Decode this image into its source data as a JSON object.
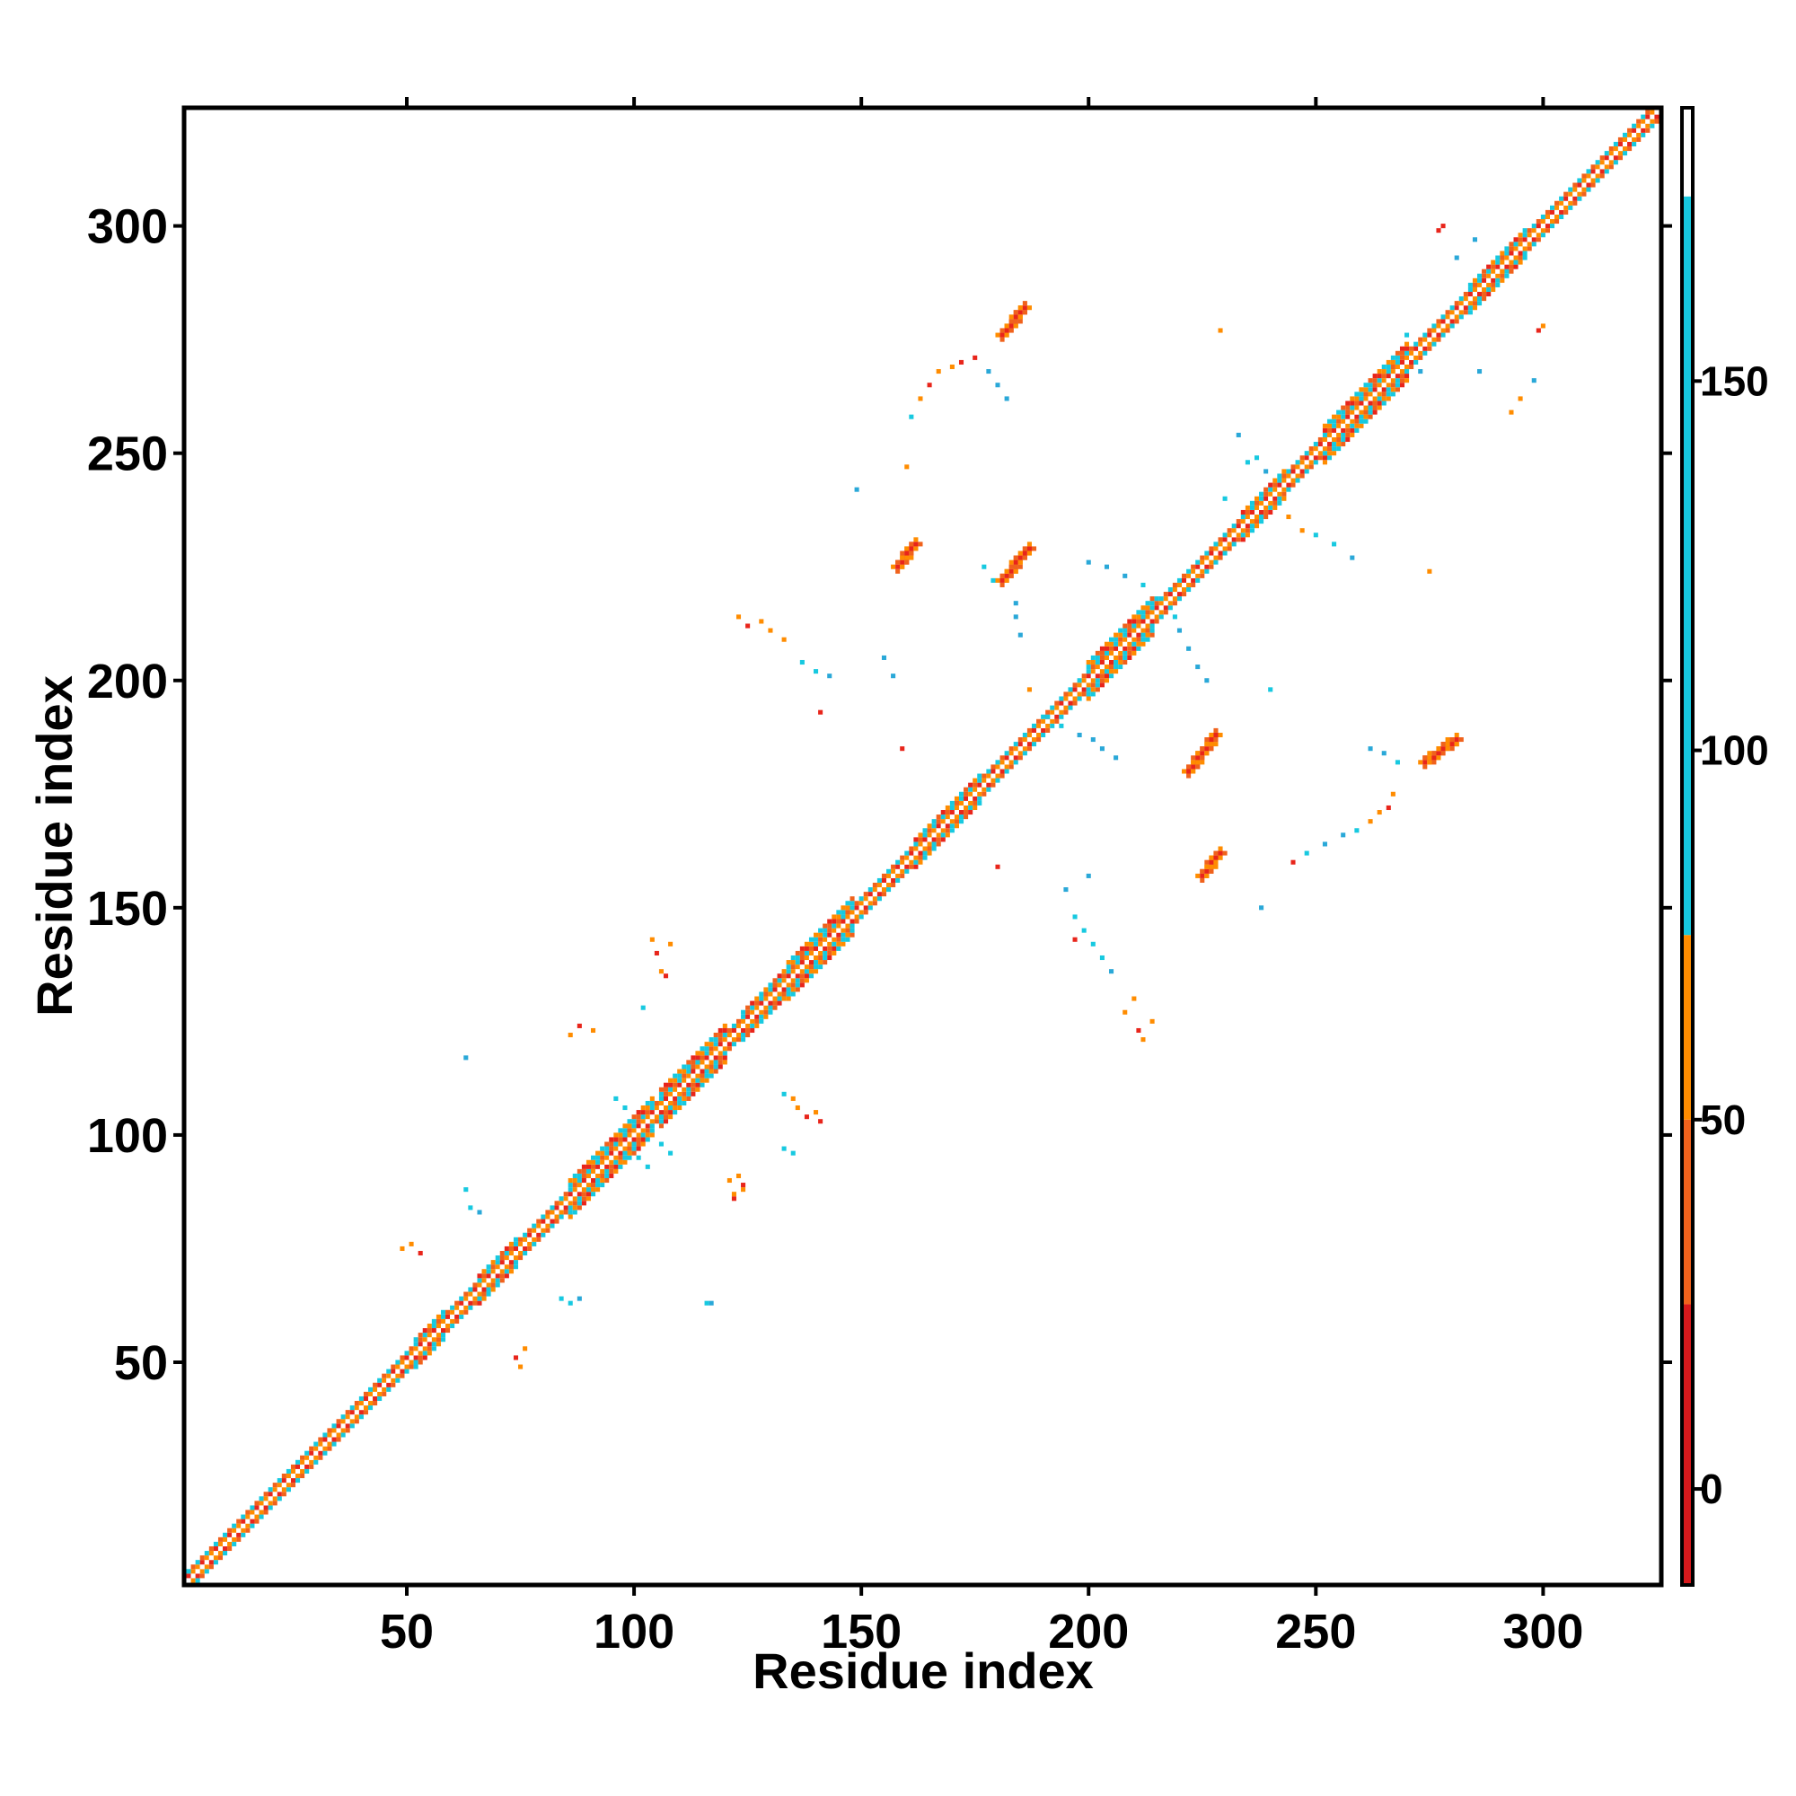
{
  "chart_data": {
    "type": "heatmap",
    "title": "",
    "xlabel": "Residue index",
    "ylabel": "Residue index",
    "xlim": [
      1,
      326
    ],
    "ylim": [
      1,
      326
    ],
    "xticks": [
      50,
      100,
      150,
      200,
      250,
      300
    ],
    "yticks": [
      50,
      100,
      150,
      200,
      250,
      300
    ],
    "grid": false,
    "colorbar": {
      "range": [
        -13,
        187
      ],
      "ticks": [
        0,
        50,
        100,
        150
      ],
      "segments": [
        {
          "from": -13,
          "to": 25,
          "color": "#d7191c"
        },
        {
          "from": 25,
          "to": 50,
          "color": "#f0621c"
        },
        {
          "from": 50,
          "to": 75,
          "color": "#ff8c00"
        },
        {
          "from": 75,
          "to": 175,
          "color": "#17c9e0"
        },
        {
          "from": 175,
          "to": 187,
          "color": "#ffffff"
        }
      ]
    },
    "colors": {
      "red": "#e8251b",
      "orange_red": "#f0621c",
      "orange": "#ff8c00",
      "cyan": "#17c9e0",
      "blue": "#2aa8d8"
    },
    "diagonal": {
      "start": 1,
      "end": 326
    },
    "diagonal_bands": [
      {
        "from": 52,
        "to": 58,
        "width": 3
      },
      {
        "from": 66,
        "to": 74,
        "width": 3
      },
      {
        "from": 86,
        "to": 104,
        "width": 4
      },
      {
        "from": 106,
        "to": 120,
        "width": 4
      },
      {
        "from": 124,
        "to": 133,
        "width": 3
      },
      {
        "from": 134,
        "to": 148,
        "width": 4
      },
      {
        "from": 162,
        "to": 176,
        "width": 3
      },
      {
        "from": 200,
        "to": 214,
        "width": 4
      },
      {
        "from": 234,
        "to": 243,
        "width": 3
      },
      {
        "from": 252,
        "to": 270,
        "width": 4
      },
      {
        "from": 284,
        "to": 296,
        "width": 3
      }
    ],
    "strand_contacts": [
      {
        "x": [
          158,
          162
        ],
        "y": [
          225,
          230
        ],
        "color": "red"
      },
      {
        "x": [
          181,
          187
        ],
        "y": [
          222,
          229
        ],
        "color": "red"
      },
      {
        "x": [
          181,
          186
        ],
        "y": [
          276,
          282
        ],
        "color": "red"
      },
      {
        "x": [
          222,
          228
        ],
        "y": [
          180,
          188
        ],
        "color": "red"
      },
      {
        "x": [
          225,
          229
        ],
        "y": [
          157,
          162
        ],
        "color": "red"
      },
      {
        "x": [
          274,
          281
        ],
        "y": [
          182,
          187
        ],
        "color": "red"
      }
    ],
    "scatter_contacts": [
      {
        "x": 49,
        "y": 75,
        "color": "orange"
      },
      {
        "x": 51,
        "y": 76,
        "color": "orange"
      },
      {
        "x": 53,
        "y": 74,
        "color": "red"
      },
      {
        "x": 74,
        "y": 51,
        "color": "red"
      },
      {
        "x": 76,
        "y": 53,
        "color": "orange"
      },
      {
        "x": 75,
        "y": 49,
        "color": "orange"
      },
      {
        "x": 63,
        "y": 88,
        "color": "cyan"
      },
      {
        "x": 64,
        "y": 84,
        "color": "cyan"
      },
      {
        "x": 66,
        "y": 83,
        "color": "blue"
      },
      {
        "x": 84,
        "y": 64,
        "color": "cyan"
      },
      {
        "x": 86,
        "y": 63,
        "color": "cyan"
      },
      {
        "x": 88,
        "y": 64,
        "color": "blue"
      },
      {
        "x": 63,
        "y": 117,
        "color": "blue"
      },
      {
        "x": 117,
        "y": 63,
        "color": "blue"
      },
      {
        "x": 86,
        "y": 122,
        "color": "orange"
      },
      {
        "x": 88,
        "y": 124,
        "color": "red"
      },
      {
        "x": 91,
        "y": 123,
        "color": "orange"
      },
      {
        "x": 122,
        "y": 86,
        "color": "red"
      },
      {
        "x": 124,
        "y": 88,
        "color": "orange"
      },
      {
        "x": 123,
        "y": 91,
        "color": "orange"
      },
      {
        "x": 96,
        "y": 108,
        "color": "cyan"
      },
      {
        "x": 98,
        "y": 106,
        "color": "cyan"
      },
      {
        "x": 108,
        "y": 96,
        "color": "cyan"
      },
      {
        "x": 106,
        "y": 98,
        "color": "cyan"
      },
      {
        "x": 101,
        "y": 95,
        "color": "cyan"
      },
      {
        "x": 103,
        "y": 93,
        "color": "cyan"
      },
      {
        "x": 104,
        "y": 143,
        "color": "orange"
      },
      {
        "x": 105,
        "y": 140,
        "color": "red"
      },
      {
        "x": 106,
        "y": 136,
        "color": "orange"
      },
      {
        "x": 108,
        "y": 142,
        "color": "orange"
      },
      {
        "x": 107,
        "y": 135,
        "color": "red"
      },
      {
        "x": 136,
        "y": 106,
        "color": "orange"
      },
      {
        "x": 138,
        "y": 104,
        "color": "red"
      },
      {
        "x": 140,
        "y": 105,
        "color": "orange"
      },
      {
        "x": 141,
        "y": 103,
        "color": "red"
      },
      {
        "x": 135,
        "y": 108,
        "color": "orange"
      },
      {
        "x": 133,
        "y": 109,
        "color": "cyan"
      },
      {
        "x": 102,
        "y": 128,
        "color": "cyan"
      },
      {
        "x": 121,
        "y": 90,
        "color": "orange"
      },
      {
        "x": 122,
        "y": 87,
        "color": "orange"
      },
      {
        "x": 124,
        "y": 89,
        "color": "red"
      },
      {
        "x": 116,
        "y": 63,
        "color": "cyan"
      },
      {
        "x": 133,
        "y": 97,
        "color": "cyan"
      },
      {
        "x": 135,
        "y": 96,
        "color": "cyan"
      },
      {
        "x": 123,
        "y": 214,
        "color": "orange"
      },
      {
        "x": 125,
        "y": 212,
        "color": "red"
      },
      {
        "x": 128,
        "y": 213,
        "color": "orange"
      },
      {
        "x": 130,
        "y": 211,
        "color": "orange"
      },
      {
        "x": 133,
        "y": 209,
        "color": "orange"
      },
      {
        "x": 137,
        "y": 204,
        "color": "cyan"
      },
      {
        "x": 140,
        "y": 202,
        "color": "cyan"
      },
      {
        "x": 143,
        "y": 201,
        "color": "blue"
      },
      {
        "x": 141,
        "y": 193,
        "color": "red"
      },
      {
        "x": 149,
        "y": 242,
        "color": "blue"
      },
      {
        "x": 155,
        "y": 205,
        "color": "blue"
      },
      {
        "x": 157,
        "y": 201,
        "color": "blue"
      },
      {
        "x": 159,
        "y": 185,
        "color": "red"
      },
      {
        "x": 160,
        "y": 247,
        "color": "orange"
      },
      {
        "x": 161,
        "y": 258,
        "color": "cyan"
      },
      {
        "x": 163,
        "y": 262,
        "color": "orange"
      },
      {
        "x": 165,
        "y": 265,
        "color": "red"
      },
      {
        "x": 167,
        "y": 268,
        "color": "orange"
      },
      {
        "x": 170,
        "y": 269,
        "color": "orange"
      },
      {
        "x": 172,
        "y": 270,
        "color": "red"
      },
      {
        "x": 175,
        "y": 271,
        "color": "red"
      },
      {
        "x": 178,
        "y": 268,
        "color": "blue"
      },
      {
        "x": 180,
        "y": 265,
        "color": "blue"
      },
      {
        "x": 182,
        "y": 262,
        "color": "blue"
      },
      {
        "x": 177,
        "y": 225,
        "color": "cyan"
      },
      {
        "x": 179,
        "y": 222,
        "color": "cyan"
      },
      {
        "x": 184,
        "y": 217,
        "color": "blue"
      },
      {
        "x": 184,
        "y": 214,
        "color": "blue"
      },
      {
        "x": 185,
        "y": 210,
        "color": "blue"
      },
      {
        "x": 180,
        "y": 159,
        "color": "red"
      },
      {
        "x": 187,
        "y": 198,
        "color": "orange"
      },
      {
        "x": 191,
        "y": 192,
        "color": "cyan"
      },
      {
        "x": 194,
        "y": 190,
        "color": "cyan"
      },
      {
        "x": 198,
        "y": 188,
        "color": "blue"
      },
      {
        "x": 201,
        "y": 187,
        "color": "blue"
      },
      {
        "x": 203,
        "y": 185,
        "color": "blue"
      },
      {
        "x": 206,
        "y": 183,
        "color": "blue"
      },
      {
        "x": 195,
        "y": 154,
        "color": "blue"
      },
      {
        "x": 197,
        "y": 148,
        "color": "cyan"
      },
      {
        "x": 199,
        "y": 145,
        "color": "cyan"
      },
      {
        "x": 201,
        "y": 142,
        "color": "cyan"
      },
      {
        "x": 203,
        "y": 139,
        "color": "cyan"
      },
      {
        "x": 205,
        "y": 136,
        "color": "blue"
      },
      {
        "x": 200,
        "y": 157,
        "color": "blue"
      },
      {
        "x": 197,
        "y": 143,
        "color": "red"
      },
      {
        "x": 208,
        "y": 127,
        "color": "orange"
      },
      {
        "x": 211,
        "y": 123,
        "color": "red"
      },
      {
        "x": 212,
        "y": 121,
        "color": "orange"
      },
      {
        "x": 214,
        "y": 125,
        "color": "orange"
      },
      {
        "x": 210,
        "y": 130,
        "color": "orange"
      },
      {
        "x": 200,
        "y": 226,
        "color": "blue"
      },
      {
        "x": 204,
        "y": 225,
        "color": "blue"
      },
      {
        "x": 208,
        "y": 223,
        "color": "blue"
      },
      {
        "x": 212,
        "y": 221,
        "color": "cyan"
      },
      {
        "x": 215,
        "y": 218,
        "color": "cyan"
      },
      {
        "x": 219,
        "y": 214,
        "color": "cyan"
      },
      {
        "x": 220,
        "y": 211,
        "color": "blue"
      },
      {
        "x": 222,
        "y": 207,
        "color": "blue"
      },
      {
        "x": 224,
        "y": 203,
        "color": "blue"
      },
      {
        "x": 226,
        "y": 200,
        "color": "blue"
      },
      {
        "x": 229,
        "y": 277,
        "color": "orange"
      },
      {
        "x": 233,
        "y": 254,
        "color": "blue"
      },
      {
        "x": 235,
        "y": 248,
        "color": "cyan"
      },
      {
        "x": 237,
        "y": 249,
        "color": "cyan"
      },
      {
        "x": 239,
        "y": 246,
        "color": "blue"
      },
      {
        "x": 240,
        "y": 198,
        "color": "cyan"
      },
      {
        "x": 238,
        "y": 150,
        "color": "blue"
      },
      {
        "x": 230,
        "y": 240,
        "color": "cyan"
      },
      {
        "x": 228,
        "y": 160,
        "color": "orange"
      },
      {
        "x": 245,
        "y": 160,
        "color": "red"
      },
      {
        "x": 248,
        "y": 162,
        "color": "cyan"
      },
      {
        "x": 252,
        "y": 164,
        "color": "blue"
      },
      {
        "x": 256,
        "y": 166,
        "color": "blue"
      },
      {
        "x": 259,
        "y": 167,
        "color": "cyan"
      },
      {
        "x": 262,
        "y": 169,
        "color": "orange"
      },
      {
        "x": 264,
        "y": 171,
        "color": "orange"
      },
      {
        "x": 266,
        "y": 172,
        "color": "red"
      },
      {
        "x": 267,
        "y": 175,
        "color": "orange"
      },
      {
        "x": 244,
        "y": 236,
        "color": "orange"
      },
      {
        "x": 247,
        "y": 233,
        "color": "orange"
      },
      {
        "x": 250,
        "y": 232,
        "color": "cyan"
      },
      {
        "x": 254,
        "y": 230,
        "color": "cyan"
      },
      {
        "x": 258,
        "y": 227,
        "color": "blue"
      },
      {
        "x": 262,
        "y": 185,
        "color": "blue"
      },
      {
        "x": 265,
        "y": 184,
        "color": "blue"
      },
      {
        "x": 268,
        "y": 182,
        "color": "cyan"
      },
      {
        "x": 275,
        "y": 224,
        "color": "orange"
      },
      {
        "x": 277,
        "y": 299,
        "color": "red"
      },
      {
        "x": 278,
        "y": 300,
        "color": "red"
      },
      {
        "x": 281,
        "y": 293,
        "color": "blue"
      },
      {
        "x": 285,
        "y": 297,
        "color": "blue"
      },
      {
        "x": 291,
        "y": 290,
        "color": "orange"
      },
      {
        "x": 293,
        "y": 259,
        "color": "orange"
      },
      {
        "x": 295,
        "y": 262,
        "color": "orange"
      },
      {
        "x": 298,
        "y": 266,
        "color": "blue"
      },
      {
        "x": 299,
        "y": 277,
        "color": "red"
      },
      {
        "x": 300,
        "y": 278,
        "color": "orange"
      },
      {
        "x": 286,
        "y": 268,
        "color": "blue"
      },
      {
        "x": 270,
        "y": 276,
        "color": "cyan"
      },
      {
        "x": 273,
        "y": 268,
        "color": "blue"
      }
    ]
  }
}
